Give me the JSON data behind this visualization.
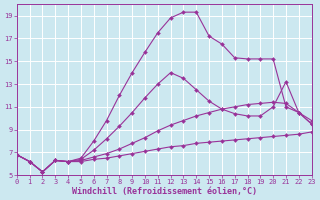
{
  "xlabel": "Windchill (Refroidissement éolien,°C)",
  "ylabel": "",
  "bg_color": "#cce8f0",
  "grid_color": "#ffffff",
  "line_color": "#993399",
  "xlim": [
    0,
    23
  ],
  "ylim": [
    5,
    20
  ],
  "xticks": [
    0,
    1,
    2,
    3,
    4,
    5,
    6,
    7,
    8,
    9,
    10,
    11,
    12,
    13,
    14,
    15,
    16,
    17,
    18,
    19,
    20,
    21,
    22,
    23
  ],
  "yticks": [
    5,
    7,
    9,
    11,
    13,
    15,
    17,
    19
  ],
  "series": [
    {
      "x": [
        0,
        1,
        2,
        3,
        4,
        5,
        6,
        7,
        8,
        9,
        10,
        11,
        12,
        13,
        14,
        15,
        16,
        17,
        18,
        19,
        20,
        21,
        22,
        23
      ],
      "y": [
        6.8,
        6.2,
        5.3,
        6.3,
        6.2,
        6.2,
        6.4,
        6.5,
        6.7,
        6.9,
        7.1,
        7.3,
        7.5,
        7.6,
        7.8,
        7.9,
        8.0,
        8.1,
        8.2,
        8.3,
        8.4,
        8.5,
        8.6,
        8.8
      ]
    },
    {
      "x": [
        0,
        1,
        2,
        3,
        4,
        5,
        6,
        7,
        8,
        9,
        10,
        11,
        12,
        13,
        14,
        15,
        16,
        17,
        18,
        19,
        20,
        21,
        22,
        23
      ],
      "y": [
        6.8,
        6.2,
        5.3,
        6.3,
        6.2,
        6.3,
        6.6,
        6.9,
        7.3,
        7.8,
        8.3,
        8.9,
        9.4,
        9.8,
        10.2,
        10.5,
        10.8,
        11.0,
        11.2,
        11.3,
        11.4,
        11.3,
        10.5,
        9.5
      ]
    },
    {
      "x": [
        0,
        1,
        2,
        3,
        4,
        5,
        6,
        7,
        8,
        9,
        10,
        11,
        12,
        13,
        14,
        15,
        16,
        17,
        18,
        19,
        20,
        21,
        22,
        23
      ],
      "y": [
        6.8,
        6.2,
        5.3,
        6.3,
        6.2,
        6.4,
        7.2,
        8.2,
        9.3,
        10.5,
        11.8,
        13.0,
        14.0,
        13.5,
        12.5,
        11.5,
        10.8,
        10.4,
        10.2,
        10.2,
        11.0,
        13.2,
        10.5,
        9.8
      ]
    },
    {
      "x": [
        0,
        1,
        2,
        3,
        4,
        5,
        6,
        7,
        8,
        9,
        10,
        11,
        12,
        13,
        14,
        15,
        16,
        17,
        18,
        19,
        20,
        21,
        22,
        23
      ],
      "y": [
        6.8,
        6.2,
        5.3,
        6.3,
        6.2,
        6.5,
        8.0,
        9.8,
        12.0,
        14.0,
        15.8,
        17.5,
        18.8,
        19.3,
        19.3,
        17.2,
        16.5,
        15.3,
        15.2,
        15.2,
        15.2,
        11.0,
        10.5,
        9.5
      ]
    }
  ],
  "marker": "D",
  "markersize": 2.0,
  "linewidth": 0.8,
  "tick_fontsize": 5.0,
  "label_fontsize": 6.0
}
